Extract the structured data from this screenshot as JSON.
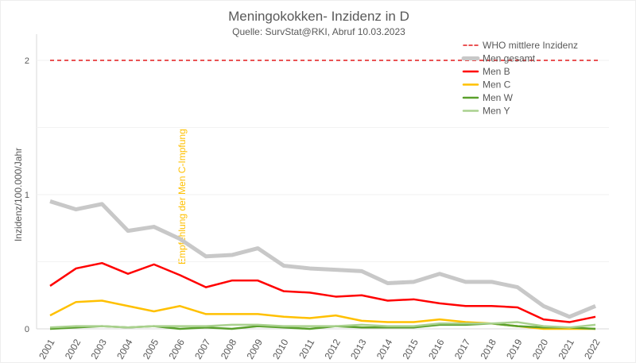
{
  "chart_data": {
    "type": "line",
    "title": "Meningokokken- Inzidenz in D",
    "subtitle": "Quelle: SurvStat@RKI, Abruf 10.03.2023",
    "xlabel": "",
    "ylabel": "Inzidenz/100.000/Jahr",
    "ylim": [
      0,
      2.2
    ],
    "yticks": [
      "0",
      "1",
      "2"
    ],
    "grid": true,
    "legend_position": "top-right",
    "x": [
      "2001",
      "2002",
      "2003",
      "2004",
      "2005",
      "2006",
      "2007",
      "2008",
      "2009",
      "2010",
      "2011",
      "2012",
      "2013",
      "2014",
      "2015",
      "2016",
      "2017",
      "2018",
      "2019",
      "2020",
      "2021",
      "2022"
    ],
    "reference_line": {
      "name": "WHO mittlere Inzidenz",
      "value": 2,
      "color": "#e31a1c"
    },
    "annotation": {
      "text": "Empfehlung der Men C-Impfung",
      "x": "2006",
      "color": "#ffc000"
    },
    "series": [
      {
        "name": "Men gesamt",
        "color": "#c8c8c8",
        "values": [
          0.95,
          0.89,
          0.93,
          0.73,
          0.76,
          0.67,
          0.54,
          0.55,
          0.6,
          0.47,
          0.45,
          0.44,
          0.43,
          0.34,
          0.35,
          0.41,
          0.35,
          0.35,
          0.31,
          0.17,
          0.09,
          0.17
        ]
      },
      {
        "name": "Men B",
        "color": "#ff0000",
        "values": [
          0.32,
          0.45,
          0.49,
          0.41,
          0.48,
          0.4,
          0.31,
          0.36,
          0.36,
          0.28,
          0.27,
          0.24,
          0.25,
          0.21,
          0.22,
          0.19,
          0.17,
          0.17,
          0.16,
          0.07,
          0.05,
          0.09
        ]
      },
      {
        "name": "Men C",
        "color": "#ffc000",
        "values": [
          0.1,
          0.2,
          0.21,
          0.17,
          0.13,
          0.17,
          0.11,
          0.11,
          0.11,
          0.09,
          0.08,
          0.1,
          0.06,
          0.05,
          0.05,
          0.07,
          0.05,
          0.04,
          0.02,
          0.0,
          0.0,
          0.0
        ]
      },
      {
        "name": "Men W",
        "color": "#5aa02c",
        "values": [
          0.0,
          0.01,
          0.02,
          0.01,
          0.02,
          0.0,
          0.01,
          0.0,
          0.02,
          0.01,
          0.0,
          0.02,
          0.01,
          0.01,
          0.01,
          0.03,
          0.03,
          0.04,
          0.02,
          0.01,
          0.01,
          0.0
        ]
      },
      {
        "name": "Men Y",
        "color": "#a9d18e",
        "values": [
          0.01,
          0.02,
          0.02,
          0.01,
          0.02,
          0.02,
          0.02,
          0.03,
          0.03,
          0.02,
          0.02,
          0.02,
          0.03,
          0.02,
          0.02,
          0.04,
          0.04,
          0.04,
          0.05,
          0.02,
          0.01,
          0.03
        ]
      }
    ]
  }
}
